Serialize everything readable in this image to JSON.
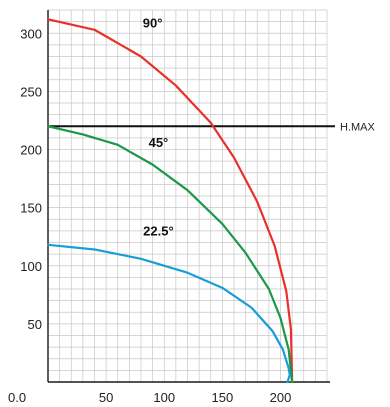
{
  "chart_data": {
    "type": "line",
    "title": "",
    "xlabel": "",
    "ylabel": "",
    "xlim": [
      0,
      250
    ],
    "ylim": [
      0,
      320
    ],
    "x_ticks": [
      0,
      50,
      100,
      150,
      200
    ],
    "x_tick_labels": [
      "0.0",
      "50",
      "100",
      "150",
      "200"
    ],
    "y_ticks": [
      50,
      100,
      150,
      200,
      250,
      300
    ],
    "y_tick_labels": [
      "50",
      "100",
      "150",
      "200",
      "250",
      "300"
    ],
    "grid": true,
    "series": [
      {
        "name": "90°",
        "color": "#e8312a",
        "x": [
          0,
          40,
          80,
          110,
          140,
          160,
          180,
          195,
          205,
          209,
          210
        ],
        "y": [
          312,
          303,
          280,
          255,
          223,
          193,
          155,
          117,
          78,
          45,
          0
        ]
      },
      {
        "name": "45°",
        "color": "#1a9a48",
        "x": [
          0,
          30,
          60,
          90,
          120,
          150,
          170,
          190,
          200,
          207,
          210
        ],
        "y": [
          220,
          213,
          204,
          187,
          165,
          136,
          111,
          80,
          55,
          28,
          0
        ]
      },
      {
        "name": "22.5°",
        "color": "#1a9ed6",
        "x": [
          0,
          40,
          80,
          120,
          150,
          175,
          193,
          202,
          207,
          208,
          206
        ],
        "y": [
          118,
          114,
          106,
          94,
          81,
          64,
          44,
          28,
          12,
          6,
          0
        ]
      }
    ],
    "reference_lines": [
      {
        "label": "H.MAX",
        "y": 220,
        "color": "#111111"
      }
    ]
  }
}
